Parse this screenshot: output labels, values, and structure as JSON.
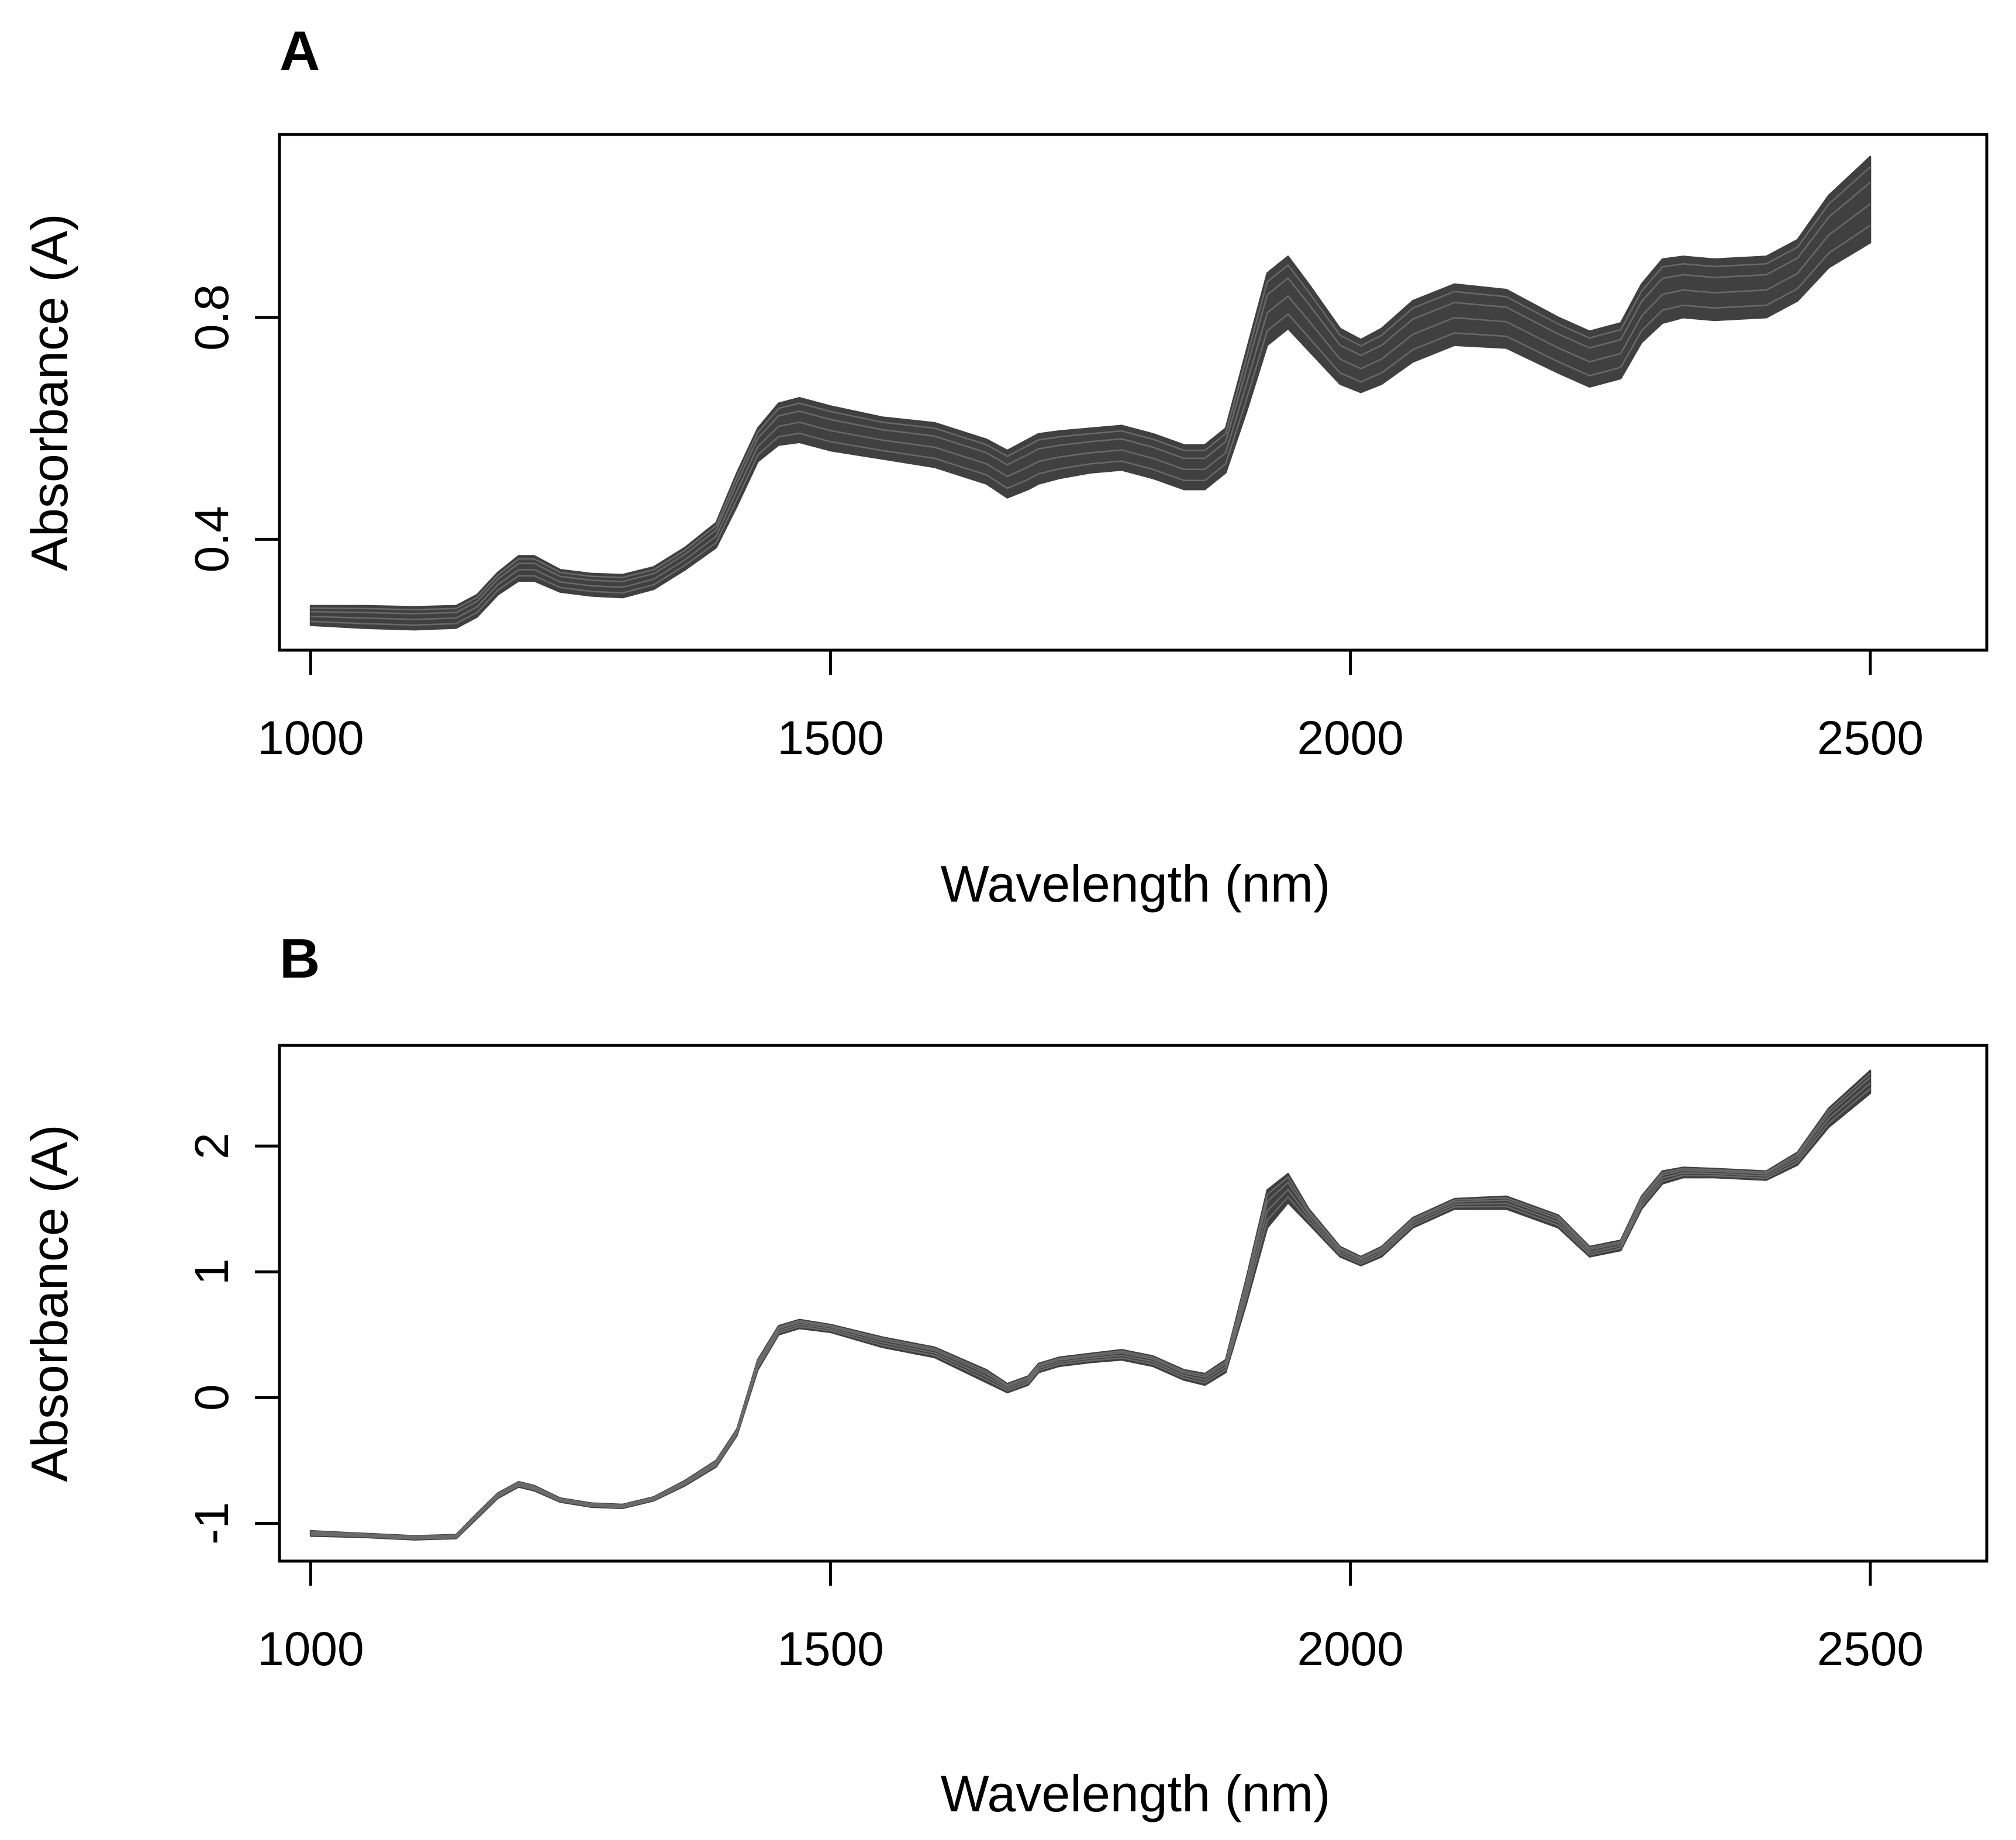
{
  "chart_data": [
    {
      "panel": "A",
      "type": "line",
      "title": "",
      "xlabel": "Wavelength (nm)",
      "ylabel": "Absorbance (A)",
      "xlim": [
        970,
        2612
      ],
      "ylim": [
        0.2,
        1.13
      ],
      "xticks": [
        1000,
        1500,
        2000,
        2500
      ],
      "xtick_labels": [
        "1000",
        "1500",
        "2000",
        "2500"
      ],
      "yticks": [
        0.4,
        0.8
      ],
      "ytick_labels": [
        "0.4",
        "0.8"
      ],
      "line_color": "#404040",
      "series_note": "many overlapping NIR spectra drawn as a band",
      "x": [
        1000,
        1050,
        1100,
        1140,
        1160,
        1180,
        1200,
        1215,
        1240,
        1270,
        1300,
        1330,
        1360,
        1390,
        1410,
        1430,
        1450,
        1470,
        1500,
        1550,
        1600,
        1650,
        1670,
        1690,
        1700,
        1720,
        1750,
        1780,
        1810,
        1840,
        1860,
        1880,
        1900,
        1920,
        1940,
        1960,
        1990,
        2010,
        2030,
        2060,
        2100,
        2150,
        2200,
        2230,
        2260,
        2280,
        2300,
        2320,
        2350,
        2400,
        2430,
        2460,
        2500
      ],
      "series": [
        {
          "name": "upper envelope",
          "values": [
            0.28,
            0.28,
            0.278,
            0.28,
            0.3,
            0.34,
            0.37,
            0.37,
            0.345,
            0.338,
            0.336,
            0.35,
            0.385,
            0.43,
            0.52,
            0.6,
            0.645,
            0.655,
            0.64,
            0.62,
            0.61,
            0.58,
            0.56,
            0.58,
            0.59,
            0.595,
            0.6,
            0.605,
            0.59,
            0.57,
            0.57,
            0.6,
            0.74,
            0.88,
            0.91,
            0.86,
            0.78,
            0.76,
            0.78,
            0.83,
            0.86,
            0.85,
            0.8,
            0.775,
            0.79,
            0.86,
            0.905,
            0.91,
            0.905,
            0.91,
            0.94,
            1.02,
            1.09
          ]
        },
        {
          "name": "lower envelope",
          "values": [
            0.245,
            0.24,
            0.237,
            0.24,
            0.26,
            0.3,
            0.325,
            0.325,
            0.305,
            0.298,
            0.295,
            0.31,
            0.345,
            0.385,
            0.46,
            0.54,
            0.57,
            0.575,
            0.56,
            0.545,
            0.53,
            0.5,
            0.475,
            0.49,
            0.5,
            0.51,
            0.52,
            0.525,
            0.51,
            0.49,
            0.49,
            0.52,
            0.63,
            0.75,
            0.78,
            0.74,
            0.68,
            0.665,
            0.68,
            0.72,
            0.75,
            0.745,
            0.7,
            0.675,
            0.69,
            0.755,
            0.79,
            0.8,
            0.795,
            0.8,
            0.83,
            0.89,
            0.935
          ]
        }
      ]
    },
    {
      "panel": "B",
      "type": "line",
      "title": "",
      "xlabel": "Wavelength (nm)",
      "ylabel": "Absorbance (A)",
      "xlim": [
        970,
        2612
      ],
      "ylim": [
        -1.3,
        2.8
      ],
      "xticks": [
        1000,
        1500,
        2000,
        2500
      ],
      "xtick_labels": [
        "1000",
        "1500",
        "2000",
        "2500"
      ],
      "yticks": [
        -1,
        0,
        1,
        2
      ],
      "ytick_labels": [
        "-1",
        "0",
        "1",
        "2"
      ],
      "line_color": "#404040",
      "series_note": "normalized spectra collapsing into a narrow band",
      "x": [
        1000,
        1050,
        1100,
        1140,
        1160,
        1180,
        1200,
        1215,
        1240,
        1270,
        1300,
        1330,
        1360,
        1390,
        1410,
        1430,
        1450,
        1470,
        1500,
        1550,
        1600,
        1650,
        1670,
        1690,
        1700,
        1720,
        1750,
        1780,
        1810,
        1840,
        1860,
        1880,
        1900,
        1920,
        1940,
        1960,
        1990,
        2010,
        2030,
        2060,
        2100,
        2150,
        2200,
        2230,
        2260,
        2280,
        2300,
        2320,
        2350,
        2400,
        2430,
        2460,
        2500
      ],
      "series": [
        {
          "name": "upper envelope",
          "values": [
            -1.06,
            -1.08,
            -1.1,
            -1.09,
            -0.92,
            -0.76,
            -0.67,
            -0.7,
            -0.8,
            -0.84,
            -0.85,
            -0.79,
            -0.66,
            -0.5,
            -0.25,
            0.3,
            0.57,
            0.62,
            0.58,
            0.48,
            0.4,
            0.22,
            0.11,
            0.17,
            0.27,
            0.32,
            0.35,
            0.38,
            0.33,
            0.22,
            0.19,
            0.3,
            0.95,
            1.65,
            1.78,
            1.5,
            1.2,
            1.12,
            1.2,
            1.43,
            1.58,
            1.6,
            1.45,
            1.2,
            1.25,
            1.6,
            1.8,
            1.83,
            1.82,
            1.8,
            1.95,
            2.3,
            2.6
          ]
        },
        {
          "name": "lower envelope",
          "values": [
            -1.1,
            -1.11,
            -1.13,
            -1.12,
            -0.96,
            -0.8,
            -0.71,
            -0.74,
            -0.83,
            -0.87,
            -0.88,
            -0.82,
            -0.7,
            -0.55,
            -0.3,
            0.22,
            0.5,
            0.55,
            0.52,
            0.4,
            0.32,
            0.12,
            0.04,
            0.1,
            0.2,
            0.25,
            0.28,
            0.3,
            0.25,
            0.14,
            0.1,
            0.2,
            0.75,
            1.35,
            1.55,
            1.38,
            1.12,
            1.05,
            1.12,
            1.35,
            1.5,
            1.5,
            1.35,
            1.12,
            1.17,
            1.5,
            1.7,
            1.75,
            1.75,
            1.73,
            1.85,
            2.15,
            2.42
          ]
        }
      ]
    }
  ]
}
